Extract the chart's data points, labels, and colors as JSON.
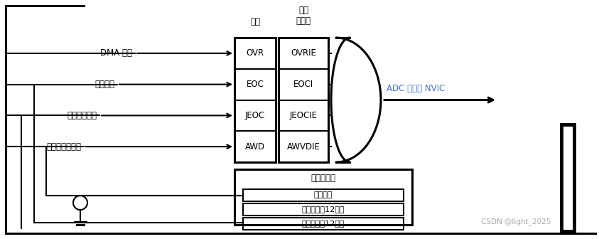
{
  "bg_color": "#ffffff",
  "line_color": "#000000",
  "text_color_blue": "#4472c4",
  "text_color_black": "#000000",
  "header_label1": "标志",
  "header_label2": "中断\n使能位",
  "flag_labels": [
    "OVR",
    "EOC",
    "JEOC",
    "AWD"
  ],
  "int_labels": [
    "OVRIE",
    "EOCI",
    "JEOCIE",
    "AWVDIE"
  ],
  "input_labels": [
    "DMA 溢出",
    "转换结束",
    "注入转换结束",
    "模拟看门狗事件"
  ],
  "output_label": "ADC 中断到 NVIC",
  "watchdog_title": "模拟看门狗",
  "watchdog_boxes": [
    "比较结果",
    "阈值上限（12位）",
    "阈值下限（12位）"
  ],
  "watermark": "CSDN @light_2025",
  "fig_width": 8.43,
  "fig_height": 3.36,
  "dpi": 100
}
